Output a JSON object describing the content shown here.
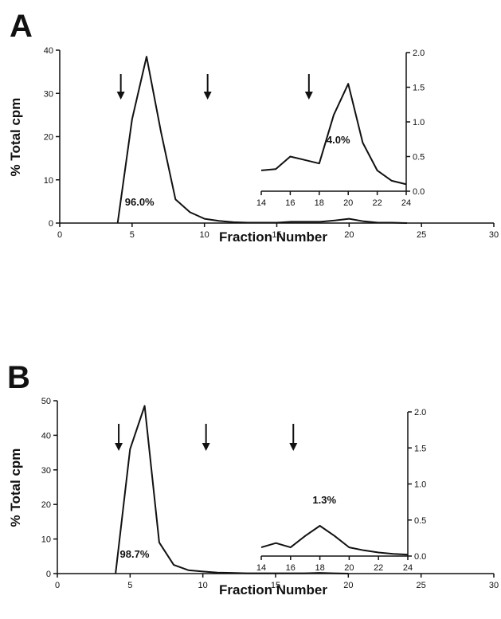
{
  "chart_data": [
    {
      "type": "line",
      "panel_label": "A",
      "xlabel": "Fraction Number",
      "ylabel": "% Total cpm",
      "xlim": [
        0,
        30
      ],
      "ylim": [
        0,
        40
      ],
      "xticks": [
        0,
        5,
        10,
        15,
        20,
        25,
        30
      ],
      "yticks": [
        0,
        10,
        20,
        30,
        40
      ],
      "series": [
        {
          "x": [
            4,
            5,
            6,
            7,
            8,
            9,
            10,
            11,
            12,
            13,
            14,
            15,
            16,
            17,
            18,
            19,
            20,
            21,
            22,
            23,
            24
          ],
          "y": [
            0,
            24,
            38.5,
            21,
            5.5,
            2.5,
            1,
            0.5,
            0.2,
            0.1,
            0.1,
            0.1,
            0.3,
            0.3,
            0.3,
            0.6,
            1.0,
            0.4,
            0.1,
            0.1,
            0
          ]
        }
      ],
      "arrows_at_fraction": [
        4,
        10,
        17
      ],
      "annotation": "96.0%",
      "inset": {
        "xlim": [
          14,
          24
        ],
        "ylim": [
          0,
          2
        ],
        "xticks": [
          14,
          16,
          18,
          20,
          22,
          24
        ],
        "yticks": [
          "0.0",
          "0.5",
          "1.0",
          "1.5",
          "2.0"
        ],
        "x": [
          14,
          15,
          16,
          17,
          18,
          19,
          20,
          21,
          22,
          23,
          24
        ],
        "y": [
          0.3,
          0.32,
          0.5,
          0.45,
          0.4,
          1.1,
          1.55,
          0.7,
          0.3,
          0.15,
          0.1
        ],
        "annotation": "4.0%"
      }
    },
    {
      "type": "line",
      "panel_label": "B",
      "xlabel": "Fraction Number",
      "ylabel": "% Total cpm",
      "xlim": [
        0,
        30
      ],
      "ylim": [
        0,
        50
      ],
      "xticks": [
        0,
        5,
        10,
        15,
        20,
        25,
        30
      ],
      "yticks": [
        0,
        10,
        20,
        30,
        40,
        50
      ],
      "series": [
        {
          "x": [
            4,
            5,
            6,
            7,
            8,
            9,
            10,
            11,
            12,
            13,
            14,
            15,
            16,
            17,
            18,
            19,
            20
          ],
          "y": [
            0,
            36,
            48.5,
            9,
            2.5,
            1,
            0.6,
            0.3,
            0.2,
            0.1,
            0.1,
            0.1,
            0.1,
            0.1,
            0.2,
            0.1,
            0
          ]
        }
      ],
      "arrows_at_fraction": [
        4,
        10,
        16
      ],
      "annotation": "98.7%",
      "inset": {
        "xlim": [
          14,
          24
        ],
        "ylim": [
          0,
          2
        ],
        "xticks": [
          14,
          16,
          18,
          20,
          22,
          24
        ],
        "yticks": [
          "0.0",
          "0.5",
          "1.0",
          "1.5",
          "2.0"
        ],
        "x": [
          14,
          15,
          16,
          17,
          18,
          19,
          20,
          21,
          22,
          23,
          24
        ],
        "y": [
          0.12,
          0.18,
          0.12,
          0.28,
          0.42,
          0.28,
          0.12,
          0.08,
          0.05,
          0.03,
          0.02
        ],
        "annotation": "1.3%"
      }
    }
  ]
}
